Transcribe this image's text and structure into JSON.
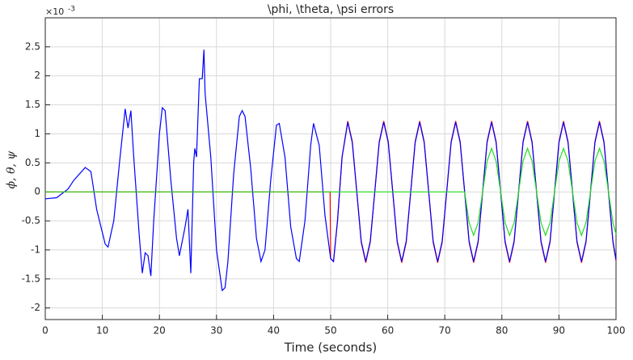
{
  "chart_data": {
    "type": "line",
    "title": "\\phi, \\theta, \\psi errors",
    "x_label": "Time (seconds)",
    "y_label": "ϕ, θ, ψ",
    "y_exponent_base": "×10",
    "y_exponent_power": "-3",
    "xlim": [
      0,
      100
    ],
    "xticks": [
      0,
      10,
      20,
      30,
      40,
      50,
      60,
      70,
      80,
      90,
      100
    ],
    "ylim": [
      -2.2,
      3
    ],
    "yticks": [
      -2,
      -1.5,
      -1,
      -0.5,
      0,
      0.5,
      1,
      1.5,
      2,
      2.5
    ],
    "grid": true,
    "series": [
      {
        "color": "#ff0000",
        "x": [
          0,
          49.9,
          50,
          50.5,
          51.2,
          52,
          53,
          53.79,
          54.58,
          55.36,
          56.15,
          56.94,
          57.73,
          58.51,
          59.3,
          60.09,
          60.88,
          61.66,
          62.45,
          63.24,
          64.03,
          64.81,
          65.6,
          66.39,
          67.18,
          67.96,
          68.75,
          69.54,
          70.33,
          71.11,
          71.9,
          72.69,
          73.48,
          74.26,
          75.05,
          75.84,
          76.63,
          77.41,
          78.2,
          78.99,
          79.78,
          80.56,
          81.35,
          82.14,
          82.93,
          83.71,
          84.5,
          85.29,
          86.08,
          86.86,
          87.65,
          88.44,
          89.23,
          90.01,
          90.8,
          91.59,
          92.38,
          93.16,
          93.95,
          94.74,
          95.53,
          96.31,
          97.1,
          97.89,
          98.68,
          99.46,
          100
        ],
        "values": [
          0,
          0,
          -1.15,
          -1.2,
          -0.5,
          0.6,
          1.22,
          0.87,
          0,
          -0.87,
          -1.22,
          -0.87,
          0,
          0.87,
          1.22,
          0.87,
          0,
          -0.87,
          -1.22,
          -0.87,
          0,
          0.87,
          1.22,
          0.87,
          0,
          -0.87,
          -1.22,
          -0.87,
          0,
          0.87,
          1.22,
          0.87,
          0,
          -0.87,
          -1.22,
          -0.87,
          0,
          0.87,
          1.22,
          0.87,
          0,
          -0.87,
          -1.22,
          -0.87,
          0,
          0.87,
          1.22,
          0.87,
          0,
          -0.87,
          -1.22,
          -0.87,
          0,
          0.87,
          1.22,
          0.87,
          0,
          -0.87,
          -1.22,
          -0.87,
          0,
          0.87,
          1.22,
          0.87,
          0,
          -0.87,
          -1.19
        ]
      },
      {
        "color": "#0000ff",
        "x": [
          0,
          2,
          4,
          5,
          7,
          8,
          9,
          10.5,
          11,
          12,
          13,
          14,
          14.5,
          15,
          15.5,
          16.5,
          17,
          17.5,
          18,
          18.5,
          19,
          20,
          20.5,
          21,
          22,
          23,
          23.5,
          24.5,
          25,
          25.5,
          26,
          26.2,
          26.5,
          27,
          27.5,
          27.8,
          28,
          29,
          30,
          31,
          31.5,
          32,
          33,
          34,
          34.5,
          35,
          36,
          37,
          37.8,
          38.5,
          39.5,
          40.5,
          41,
          42,
          43,
          44,
          44.5,
          45.5,
          46.5,
          47,
          48,
          49,
          50,
          50.5,
          51.2,
          52,
          53,
          53.79,
          54.58,
          55.36,
          56.15,
          56.94,
          57.73,
          58.51,
          59.3,
          60.09,
          60.88,
          61.66,
          62.45,
          63.24,
          64.03,
          64.81,
          65.6,
          66.39,
          67.18,
          67.96,
          68.75,
          69.54,
          70.33,
          71.11,
          71.9,
          72.69,
          73.48,
          74.26,
          75.05,
          75.84,
          76.63,
          77.41,
          78.2,
          78.99,
          79.78,
          80.56,
          81.35,
          82.14,
          82.93,
          83.71,
          84.5,
          85.29,
          86.08,
          86.86,
          87.65,
          88.44,
          89.23,
          90.01,
          90.8,
          91.59,
          92.38,
          93.16,
          93.95,
          94.74,
          95.53,
          96.31,
          97.1,
          97.89,
          98.68,
          99.46,
          100
        ],
        "values": [
          -0.12,
          -0.1,
          0.05,
          0.2,
          0.42,
          0.35,
          -0.3,
          -0.9,
          -0.95,
          -0.5,
          0.5,
          1.43,
          1.1,
          1.4,
          0.6,
          -0.8,
          -1.4,
          -1.05,
          -1.1,
          -1.45,
          -0.5,
          1,
          1.45,
          1.4,
          0.2,
          -0.8,
          -1.1,
          -0.6,
          -0.3,
          -1.4,
          0.5,
          0.75,
          0.6,
          1.95,
          1.95,
          2.45,
          1.7,
          0.6,
          -1,
          -1.7,
          -1.65,
          -1.2,
          0.3,
          1.3,
          1.4,
          1.3,
          0.4,
          -0.8,
          -1.2,
          -1,
          0.2,
          1.15,
          1.18,
          0.6,
          -0.6,
          -1.15,
          -1.2,
          -0.5,
          0.8,
          1.18,
          0.8,
          -0.4,
          -1.15,
          -1.2,
          -0.5,
          0.6,
          1.2,
          0.85,
          0,
          -0.85,
          -1.2,
          -0.85,
          0,
          0.85,
          1.2,
          0.85,
          0,
          -0.85,
          -1.2,
          -0.85,
          0,
          0.85,
          1.2,
          0.85,
          0,
          -0.85,
          -1.2,
          -0.85,
          0,
          0.85,
          1.2,
          0.85,
          0,
          -0.85,
          -1.2,
          -0.85,
          0,
          0.85,
          1.2,
          0.85,
          0,
          -0.85,
          -1.2,
          -0.85,
          0,
          0.85,
          1.2,
          0.85,
          0,
          -0.85,
          -1.2,
          -0.85,
          0,
          0.85,
          1.2,
          0.85,
          0,
          -0.85,
          -1.2,
          -0.85,
          0,
          0.85,
          1.2,
          0.85,
          0,
          -0.85,
          -1.17
        ]
      },
      {
        "color": "#22dd22",
        "x": [
          0,
          73.48,
          74.26,
          75.05,
          75.84,
          76.63,
          77.41,
          78.2,
          78.99,
          79.78,
          80.56,
          81.35,
          82.14,
          82.93,
          83.71,
          84.5,
          85.29,
          86.08,
          86.86,
          87.65,
          88.44,
          89.23,
          90.01,
          90.8,
          91.59,
          92.38,
          93.16,
          93.95,
          94.74,
          95.53,
          96.31,
          97.1,
          97.89,
          98.68,
          99.46,
          100
        ],
        "values": [
          0,
          0,
          -0.53,
          -0.75,
          -0.53,
          0,
          0.53,
          0.75,
          0.53,
          0,
          -0.53,
          -0.75,
          -0.53,
          0,
          0.53,
          0.75,
          0.53,
          0,
          -0.53,
          -0.75,
          -0.53,
          0,
          0.53,
          0.75,
          0.53,
          0,
          -0.53,
          -0.75,
          -0.53,
          0,
          0.53,
          0.75,
          0.53,
          0,
          -0.53,
          -0.73
        ]
      }
    ]
  }
}
